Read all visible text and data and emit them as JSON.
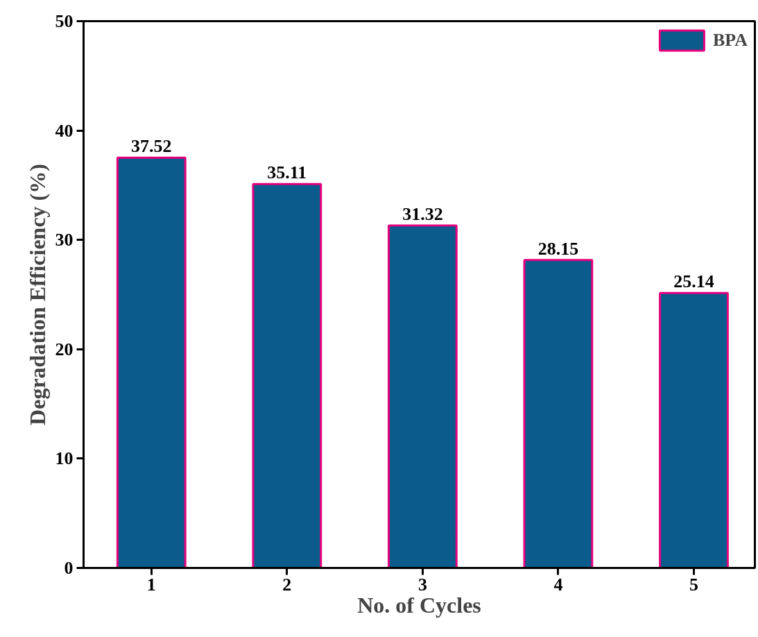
{
  "chart_data": {
    "type": "bar",
    "xlabel": "No. of Cycles",
    "ylabel": "Degradation Efficiency (%)",
    "categories": [
      "1",
      "2",
      "3",
      "4",
      "5"
    ],
    "series": [
      {
        "name": "BPA",
        "color": "#0b5b8c",
        "values": [
          37.52,
          35.11,
          31.32,
          28.15,
          25.14
        ]
      }
    ],
    "ylim": [
      0,
      50
    ],
    "yticks": [
      0,
      10,
      20,
      30,
      40,
      50
    ],
    "grid": false,
    "legend": "top right",
    "data_labels": true
  }
}
